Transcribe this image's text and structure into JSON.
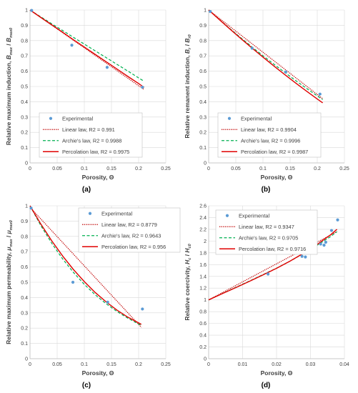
{
  "colors": {
    "experimental": "#5b9bd5",
    "linear": "#c00000",
    "archie": "#00b050",
    "percolation": "#e00000",
    "grid": "#d9d9d9",
    "axis": "#bfbfbf"
  },
  "chart_data": [
    {
      "type": "scatter",
      "panel_label": "(a)",
      "xlabel": "Porosity, Θ",
      "ylabel": "Relative maximum induction, B_max / B_max0",
      "ylabel_parts": {
        "lead": "Relative maximum induction, ",
        "s1": "B",
        "s1sub": "max",
        "sep": "/",
        "s2": "B",
        "s2sub": "max0"
      },
      "xlim": [
        0,
        0.25
      ],
      "ylim": [
        0,
        1
      ],
      "xticks": [
        "0",
        "0.05",
        "0.1",
        "0.15",
        "0.2",
        "0.25"
      ],
      "yticks": [
        "0",
        "0.1",
        "0.2",
        "0.3",
        "0.4",
        "0.5",
        "0.6",
        "0.7",
        "0.8",
        "0.9",
        "1"
      ],
      "legend_position": "bottom-left",
      "legend": [
        "Experimental",
        "Linear law, R2 = 0.991",
        "Archie's law, R2 = 0.9988",
        "Percolation law, R2 = 0.9975"
      ],
      "points": {
        "x": [
          0.003,
          0.077,
          0.142,
          0.207
        ],
        "y": [
          0.997,
          0.77,
          0.625,
          0.495
        ]
      },
      "lines": {
        "linear": {
          "x": [
            0,
            0.21
          ],
          "y": [
            1.0,
            0.48
          ]
        },
        "archie": {
          "x": [
            0,
            0.02,
            0.04,
            0.06,
            0.08,
            0.1,
            0.12,
            0.14,
            0.16,
            0.18,
            0.2,
            0.21
          ],
          "y": [
            1.0,
            0.955,
            0.91,
            0.866,
            0.821,
            0.777,
            0.733,
            0.689,
            0.645,
            0.601,
            0.556,
            0.534
          ]
        },
        "percolation": {
          "x": [
            0,
            0.02,
            0.04,
            0.06,
            0.08,
            0.1,
            0.12,
            0.14,
            0.16,
            0.18,
            0.2,
            0.21
          ],
          "y": [
            1.0,
            0.951,
            0.903,
            0.855,
            0.805,
            0.758,
            0.71,
            0.662,
            0.614,
            0.566,
            0.519,
            0.494
          ]
        }
      }
    },
    {
      "type": "scatter",
      "panel_label": "(b)",
      "xlabel": "Porosity, Θ",
      "ylabel": "Relative remanent induction, B_r / B_r0",
      "ylabel_parts": {
        "lead": "Relative remanent induction, ",
        "s1": "B",
        "s1sub": "r",
        "sep": "/",
        "s2": "B",
        "s2sub": "r0"
      },
      "xlim": [
        0,
        0.25
      ],
      "ylim": [
        0,
        1
      ],
      "xticks": [
        "0",
        "0.05",
        "0.1",
        "0.15",
        "0.2",
        "0.25"
      ],
      "yticks": [
        "0",
        "0.1",
        "0.2",
        "0.3",
        "0.4",
        "0.5",
        "0.6",
        "0.7",
        "0.8",
        "0.9",
        "1"
      ],
      "legend_position": "bottom-left",
      "legend": [
        "Experimental",
        "Linear law, R2 = 0.9904",
        "Archie's law, R2 = 0.9996",
        "Percolation law, R2 = 0.9987"
      ],
      "points": {
        "x": [
          0.003,
          0.08,
          0.142,
          0.205
        ],
        "y": [
          0.99,
          0.75,
          0.595,
          0.45
        ]
      },
      "lines": {
        "linear": {
          "x": [
            0,
            0.21
          ],
          "y": [
            1.0,
            0.42
          ]
        },
        "archie": {
          "x": [
            0,
            0.02,
            0.04,
            0.06,
            0.08,
            0.1,
            0.12,
            0.14,
            0.16,
            0.18,
            0.2,
            0.21
          ],
          "y": [
            1.0,
            0.937,
            0.876,
            0.816,
            0.758,
            0.701,
            0.646,
            0.592,
            0.539,
            0.488,
            0.438,
            0.414
          ]
        },
        "percolation": {
          "x": [
            0,
            0.02,
            0.04,
            0.06,
            0.08,
            0.1,
            0.12,
            0.14,
            0.16,
            0.18,
            0.2,
            0.21
          ],
          "y": [
            1.0,
            0.936,
            0.873,
            0.811,
            0.751,
            0.692,
            0.634,
            0.578,
            0.523,
            0.47,
            0.418,
            0.393
          ]
        }
      }
    },
    {
      "type": "scatter",
      "panel_label": "(c)",
      "xlabel": "Porosity, Θ",
      "ylabel": "Relative maximum permeability, μ_max / μ_max0",
      "ylabel_parts": {
        "lead": "Relative maximum permeability, ",
        "s1": "μ",
        "s1sub": "max",
        "sep": "/",
        "s2": "μ",
        "s2sub": "max0"
      },
      "xlim": [
        0,
        0.25
      ],
      "ylim": [
        0,
        1
      ],
      "xticks": [
        "0",
        "0.05",
        "0.1",
        "0.15",
        "0.2",
        "0.25"
      ],
      "yticks": [
        "0",
        "0.1",
        "0.2",
        "0.3",
        "0.4",
        "0.5",
        "0.6",
        "0.7",
        "0.8",
        "0.9",
        "1"
      ],
      "legend_position": "top-right",
      "legend": [
        "Experimental",
        "Linear law, R2 = 0.8779",
        "Archie's law, R2 = 0.9643",
        "Percolation law, R2 = 0.956"
      ],
      "points": {
        "x": [
          0.002,
          0.079,
          0.143,
          0.207
        ],
        "y": [
          0.985,
          0.5,
          0.37,
          0.325
        ]
      },
      "lines": {
        "linear": {
          "x": [
            0,
            0.205
          ],
          "y": [
            0.99,
            0.205
          ]
        },
        "archie": {
          "x": [
            0,
            0.02,
            0.04,
            0.06,
            0.08,
            0.1,
            0.12,
            0.14,
            0.16,
            0.18,
            0.2,
            0.205
          ],
          "y": [
            1.0,
            0.87,
            0.755,
            0.653,
            0.564,
            0.486,
            0.418,
            0.36,
            0.309,
            0.265,
            0.227,
            0.218
          ]
        },
        "percolation": {
          "x": [
            0,
            0.02,
            0.04,
            0.06,
            0.08,
            0.1,
            0.12,
            0.14,
            0.16,
            0.18,
            0.2,
            0.205
          ],
          "y": [
            1.0,
            0.88,
            0.771,
            0.672,
            0.583,
            0.504,
            0.433,
            0.372,
            0.318,
            0.272,
            0.234,
            0.225
          ]
        }
      }
    },
    {
      "type": "scatter",
      "panel_label": "(d)",
      "xlabel": "Porosity, Θ",
      "ylabel": "Relative coercivity, H_c / H_c0",
      "ylabel_parts": {
        "lead": "Relative coercivity, ",
        "s1": "H",
        "s1sub": "c",
        "sep": "/",
        "s2": "H",
        "s2sub": "c0"
      },
      "xlim": [
        0,
        0.04
      ],
      "ylim": [
        0,
        2.6
      ],
      "xticks": [
        "0",
        "0.01",
        "0.02",
        "0.03",
        "0.04"
      ],
      "yticks": [
        "0",
        "0.2",
        "0.4",
        "0.6",
        "0.8",
        "1",
        "1.2",
        "1.4",
        "1.6",
        "1.8",
        "2",
        "2.2",
        "2.4",
        "2.6"
      ],
      "legend_position": "top-left",
      "legend": [
        "Experimental",
        "Linear law, R2 = 0.9347",
        "Archie's law, R2 = 0.9705",
        "Percolation law, R2 = 0.9716"
      ],
      "points": {
        "x": [
          0.0175,
          0.0275,
          0.0285,
          0.0295,
          0.033,
          0.034,
          0.0345,
          0.0362,
          0.038
        ],
        "y": [
          1.44,
          1.74,
          1.73,
          1.87,
          1.95,
          1.93,
          1.98,
          2.18,
          2.36
        ]
      },
      "lines": {
        "linear": {
          "x": [
            0,
            0.0378
          ],
          "y": [
            1.0,
            2.16
          ]
        },
        "archie": {
          "x": [
            0,
            0.004,
            0.008,
            0.012,
            0.016,
            0.02,
            0.024,
            0.028,
            0.032,
            0.036,
            0.0378
          ],
          "y": [
            1.0,
            1.108,
            1.214,
            1.32,
            1.43,
            1.54,
            1.66,
            1.79,
            1.93,
            2.08,
            2.16
          ]
        },
        "percolation": {
          "x": [
            0,
            0.004,
            0.008,
            0.012,
            0.016,
            0.02,
            0.024,
            0.028,
            0.032,
            0.036,
            0.0378
          ],
          "y": [
            1.0,
            1.105,
            1.209,
            1.315,
            1.425,
            1.537,
            1.66,
            1.795,
            1.945,
            2.11,
            2.2
          ]
        }
      }
    }
  ]
}
